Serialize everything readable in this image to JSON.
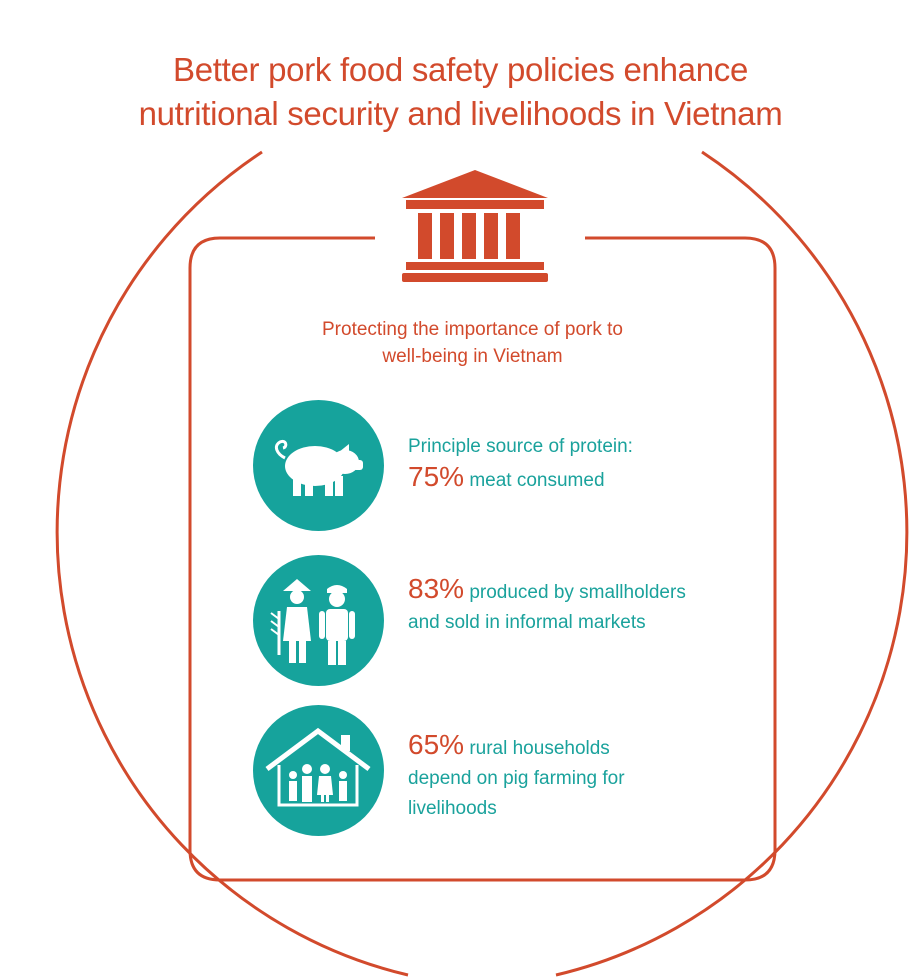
{
  "colors": {
    "accent": "#d24a2c",
    "teal": "#16a39c",
    "teal_text": "#1aa29c"
  },
  "header": {
    "title_line1": "Better pork food safety policies enhance",
    "title_line2": "nutritional security and livelihoods in Vietnam"
  },
  "panel": {
    "icon": "government-building-icon",
    "subtitle_line1": "Protecting the importance of pork to",
    "subtitle_line2": "well-being in Vietnam"
  },
  "stats": [
    {
      "icon": "pig-icon",
      "line1_text": "Principle source of protein:",
      "value": "75%",
      "value_suffix": " meat consumed"
    },
    {
      "icon": "farmers-icon",
      "value": "83%",
      "value_suffix": " produced by smallholders",
      "line2_text": "and sold in informal markets"
    },
    {
      "icon": "family-house-icon",
      "value": "65%",
      "value_suffix": " rural households",
      "line2_text": "depend on pig farming for",
      "line3_text": "livelihoods"
    }
  ]
}
